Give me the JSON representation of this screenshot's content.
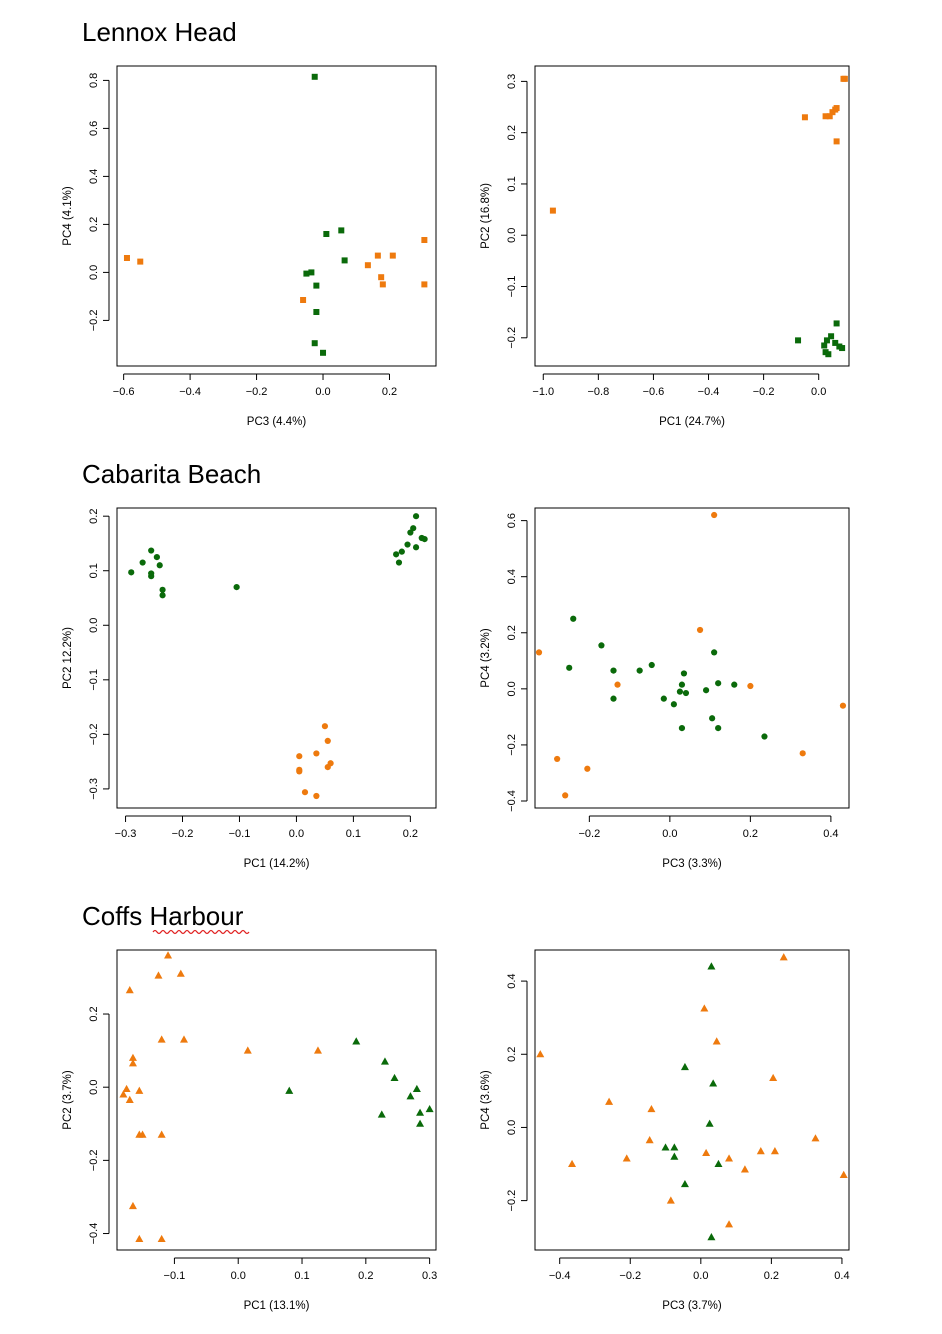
{
  "colors": {
    "green": "#0a6a0a",
    "orange": "#ee7a0e"
  },
  "sections": [
    {
      "title": "Lennox Head"
    },
    {
      "title": "Cabarita Beach"
    },
    {
      "title": "Coffs Harbour"
    }
  ],
  "chart_data": [
    {
      "type": "scatter",
      "marker": "square",
      "xlabel": "PC3 (4.4%)",
      "ylabel": "PC4 (4.1%)",
      "xlim": [
        -0.62,
        0.34
      ],
      "ylim": [
        -0.39,
        0.86
      ],
      "xticks": [
        -0.6,
        -0.4,
        -0.2,
        0.0,
        0.2
      ],
      "xtick_labels": [
        "−0.6",
        "−0.4",
        "−0.2",
        "0.0",
        "0.2"
      ],
      "yticks": [
        -0.2,
        0.0,
        0.2,
        0.4,
        0.6,
        0.8
      ],
      "ytick_labels": [
        "−0.2",
        "0.0",
        "0.2",
        "0.4",
        "0.6",
        "0.8"
      ],
      "series": [
        {
          "color": "green",
          "points": [
            [
              -0.025,
              0.815
            ],
            [
              0.01,
              0.16
            ],
            [
              0.055,
              0.175
            ],
            [
              0.065,
              0.05
            ],
            [
              -0.05,
              -0.005
            ],
            [
              -0.035,
              0.0
            ],
            [
              -0.02,
              -0.055
            ],
            [
              -0.02,
              -0.165
            ],
            [
              -0.025,
              -0.295
            ],
            [
              0.0,
              -0.335
            ]
          ]
        },
        {
          "color": "orange",
          "points": [
            [
              -0.59,
              0.06
            ],
            [
              -0.55,
              0.045
            ],
            [
              0.135,
              0.03
            ],
            [
              0.165,
              0.07
            ],
            [
              0.21,
              0.07
            ],
            [
              0.305,
              0.135
            ],
            [
              0.175,
              -0.02
            ],
            [
              0.18,
              -0.05
            ],
            [
              0.305,
              -0.05
            ],
            [
              -0.06,
              -0.115
            ]
          ]
        }
      ]
    },
    {
      "type": "scatter",
      "marker": "square",
      "xlabel": "PC1 (24.7%)",
      "ylabel": "PC2 (16.8%)",
      "xlim": [
        -1.03,
        0.11
      ],
      "ylim": [
        -0.255,
        0.33
      ],
      "xticks": [
        -1.0,
        -0.8,
        -0.6,
        -0.4,
        -0.2,
        0.0
      ],
      "xtick_labels": [
        "−1.0",
        "−0.8",
        "−0.6",
        "−0.4",
        "−0.2",
        "0.0"
      ],
      "yticks": [
        -0.2,
        -0.1,
        0.0,
        0.1,
        0.2,
        0.3
      ],
      "ytick_labels": [
        "−0.2",
        "−0.1",
        "0.0",
        "0.1",
        "0.2",
        "0.3"
      ],
      "series": [
        {
          "color": "orange",
          "points": [
            [
              -0.965,
              0.048
            ],
            [
              -0.05,
              0.23
            ],
            [
              0.025,
              0.232
            ],
            [
              0.04,
              0.232
            ],
            [
              0.05,
              0.24
            ],
            [
              0.06,
              0.245
            ],
            [
              0.065,
              0.248
            ],
            [
              0.09,
              0.305
            ],
            [
              0.095,
              0.305
            ],
            [
              0.065,
              0.183
            ]
          ]
        },
        {
          "color": "green",
          "points": [
            [
              -0.075,
              -0.205
            ],
            [
              0.02,
              -0.215
            ],
            [
              0.03,
              -0.205
            ],
            [
              0.045,
              -0.197
            ],
            [
              0.065,
              -0.172
            ],
            [
              0.06,
              -0.21
            ],
            [
              0.075,
              -0.217
            ],
            [
              0.085,
              -0.22
            ],
            [
              0.025,
              -0.228
            ],
            [
              0.035,
              -0.232
            ]
          ]
        }
      ]
    },
    {
      "type": "scatter",
      "marker": "circle",
      "xlabel": "PC1 (14.2%)",
      "ylabel": "PC2 12.2%)",
      "xlim": [
        -0.315,
        0.245
      ],
      "ylim": [
        -0.335,
        0.215
      ],
      "xticks": [
        -0.3,
        -0.2,
        -0.1,
        0.0,
        0.1,
        0.2
      ],
      "xtick_labels": [
        "−0.3",
        "−0.2",
        "−0.1",
        "0.0",
        "0.1",
        "0.2"
      ],
      "yticks": [
        -0.3,
        -0.2,
        -0.1,
        0.0,
        0.1,
        0.2
      ],
      "ytick_labels": [
        "−0.3",
        "−0.2",
        "−0.1",
        "0.0",
        "0.1",
        "0.2"
      ],
      "series": [
        {
          "color": "green",
          "points": [
            [
              -0.29,
              0.097
            ],
            [
              -0.27,
              0.115
            ],
            [
              -0.255,
              0.137
            ],
            [
              -0.255,
              0.095
            ],
            [
              -0.255,
              0.09
            ],
            [
              -0.245,
              0.125
            ],
            [
              -0.24,
              0.11
            ],
            [
              -0.235,
              0.065
            ],
            [
              -0.235,
              0.055
            ],
            [
              -0.105,
              0.07
            ],
            [
              0.175,
              0.13
            ],
            [
              0.18,
              0.115
            ],
            [
              0.185,
              0.135
            ],
            [
              0.195,
              0.148
            ],
            [
              0.2,
              0.17
            ],
            [
              0.205,
              0.178
            ],
            [
              0.21,
              0.2
            ],
            [
              0.21,
              0.143
            ],
            [
              0.22,
              0.16
            ],
            [
              0.225,
              0.158
            ]
          ]
        },
        {
          "color": "orange",
          "points": [
            [
              0.05,
              -0.185
            ],
            [
              0.055,
              -0.212
            ],
            [
              0.005,
              -0.24
            ],
            [
              0.035,
              -0.235
            ],
            [
              0.06,
              -0.253
            ],
            [
              0.005,
              -0.265
            ],
            [
              0.005,
              -0.268
            ],
            [
              0.055,
              -0.26
            ],
            [
              0.015,
              -0.306
            ],
            [
              0.035,
              -0.313
            ]
          ]
        }
      ]
    },
    {
      "type": "scatter",
      "marker": "circle",
      "xlabel": "PC3 (3.3%)",
      "ylabel": "PC4 (3.2%)",
      "xlim": [
        -0.335,
        0.445
      ],
      "ylim": [
        -0.425,
        0.645
      ],
      "xticks": [
        -0.2,
        0.0,
        0.2,
        0.4
      ],
      "xtick_labels": [
        "−0.2",
        "0.0",
        "0.2",
        "0.4"
      ],
      "yticks": [
        -0.4,
        -0.2,
        0.0,
        0.2,
        0.4,
        0.6
      ],
      "ytick_labels": [
        "−0.4",
        "−0.2",
        "0.0",
        "0.2",
        "0.4",
        "0.6"
      ],
      "series": [
        {
          "color": "green",
          "points": [
            [
              -0.24,
              0.25
            ],
            [
              -0.25,
              0.075
            ],
            [
              -0.17,
              0.155
            ],
            [
              -0.14,
              0.065
            ],
            [
              -0.14,
              -0.035
            ],
            [
              -0.075,
              0.065
            ],
            [
              -0.045,
              0.085
            ],
            [
              -0.015,
              -0.035
            ],
            [
              0.01,
              -0.055
            ],
            [
              0.025,
              -0.01
            ],
            [
              0.035,
              0.055
            ],
            [
              0.03,
              0.015
            ],
            [
              0.04,
              -0.015
            ],
            [
              0.03,
              -0.14
            ],
            [
              0.09,
              -0.005
            ],
            [
              0.11,
              0.13
            ],
            [
              0.12,
              0.02
            ],
            [
              0.105,
              -0.105
            ],
            [
              0.12,
              -0.14
            ],
            [
              0.16,
              0.015
            ],
            [
              0.235,
              -0.17
            ]
          ]
        },
        {
          "color": "orange",
          "points": [
            [
              0.11,
              0.62
            ],
            [
              0.075,
              0.21
            ],
            [
              -0.325,
              0.13
            ],
            [
              -0.13,
              0.015
            ],
            [
              0.2,
              0.01
            ],
            [
              0.43,
              -0.06
            ],
            [
              0.33,
              -0.23
            ],
            [
              -0.205,
              -0.285
            ],
            [
              -0.28,
              -0.25
            ],
            [
              -0.26,
              -0.38
            ]
          ]
        }
      ]
    },
    {
      "type": "scatter",
      "marker": "triangle",
      "xlabel": "PC1 (13.1%)",
      "ylabel": "PC2 (3.7%)",
      "xlim": [
        -0.19,
        0.31
      ],
      "ylim": [
        -0.445,
        0.375
      ],
      "xticks": [
        -0.1,
        0.0,
        0.1,
        0.2,
        0.3
      ],
      "xtick_labels": [
        "−0.1",
        "0.0",
        "0.1",
        "0.2",
        "0.3"
      ],
      "yticks": [
        -0.4,
        -0.2,
        0.0,
        0.2
      ],
      "ytick_labels": [
        "−0.4",
        "−0.2",
        "0.0",
        "0.2"
      ],
      "series": [
        {
          "color": "orange",
          "points": [
            [
              -0.11,
              0.36
            ],
            [
              -0.09,
              0.31
            ],
            [
              -0.125,
              0.305
            ],
            [
              -0.17,
              0.265
            ],
            [
              -0.12,
              0.13
            ],
            [
              -0.085,
              0.13
            ],
            [
              0.015,
              0.1
            ],
            [
              0.125,
              0.1
            ],
            [
              -0.165,
              0.08
            ],
            [
              -0.165,
              0.065
            ],
            [
              -0.175,
              -0.005
            ],
            [
              -0.18,
              -0.02
            ],
            [
              -0.155,
              -0.01
            ],
            [
              -0.17,
              -0.035
            ],
            [
              -0.155,
              -0.13
            ],
            [
              -0.15,
              -0.13
            ],
            [
              -0.12,
              -0.13
            ],
            [
              -0.165,
              -0.325
            ],
            [
              -0.155,
              -0.415
            ],
            [
              -0.12,
              -0.415
            ]
          ]
        },
        {
          "color": "green",
          "points": [
            [
              0.08,
              -0.01
            ],
            [
              0.185,
              0.125
            ],
            [
              0.23,
              0.07
            ],
            [
              0.245,
              0.025
            ],
            [
              0.28,
              -0.005
            ],
            [
              0.27,
              -0.025
            ],
            [
              0.225,
              -0.075
            ],
            [
              0.285,
              -0.07
            ],
            [
              0.3,
              -0.06
            ],
            [
              0.285,
              -0.1
            ]
          ]
        }
      ]
    },
    {
      "type": "scatter",
      "marker": "triangle",
      "xlabel": "PC3 (3.7%)",
      "ylabel": "PC4 (3.6%)",
      "xlim": [
        -0.47,
        0.42
      ],
      "ylim": [
        -0.335,
        0.485
      ],
      "xticks": [
        -0.4,
        -0.2,
        0.0,
        0.2,
        0.4
      ],
      "xtick_labels": [
        "−0.4",
        "−0.2",
        "0.0",
        "0.2",
        "0.4"
      ],
      "yticks": [
        -0.2,
        0.0,
        0.2,
        0.4
      ],
      "ytick_labels": [
        "−0.2",
        "0.0",
        "0.2",
        "0.4"
      ],
      "series": [
        {
          "color": "green",
          "points": [
            [
              0.03,
              0.44
            ],
            [
              -0.045,
              0.165
            ],
            [
              0.035,
              0.12
            ],
            [
              0.025,
              0.01
            ],
            [
              -0.1,
              -0.055
            ],
            [
              -0.075,
              -0.055
            ],
            [
              -0.075,
              -0.08
            ],
            [
              0.05,
              -0.1
            ],
            [
              -0.045,
              -0.155
            ],
            [
              0.03,
              -0.3
            ]
          ]
        },
        {
          "color": "orange",
          "points": [
            [
              0.235,
              0.465
            ],
            [
              0.01,
              0.325
            ],
            [
              0.045,
              0.235
            ],
            [
              0.205,
              0.135
            ],
            [
              -0.455,
              0.2
            ],
            [
              -0.26,
              0.07
            ],
            [
              -0.14,
              0.05
            ],
            [
              -0.145,
              -0.035
            ],
            [
              0.325,
              -0.03
            ],
            [
              -0.21,
              -0.085
            ],
            [
              -0.365,
              -0.1
            ],
            [
              0.015,
              -0.07
            ],
            [
              0.08,
              -0.085
            ],
            [
              0.17,
              -0.065
            ],
            [
              0.21,
              -0.065
            ],
            [
              0.125,
              -0.115
            ],
            [
              0.405,
              -0.13
            ],
            [
              -0.085,
              -0.2
            ],
            [
              0.08,
              -0.265
            ]
          ]
        }
      ]
    }
  ]
}
